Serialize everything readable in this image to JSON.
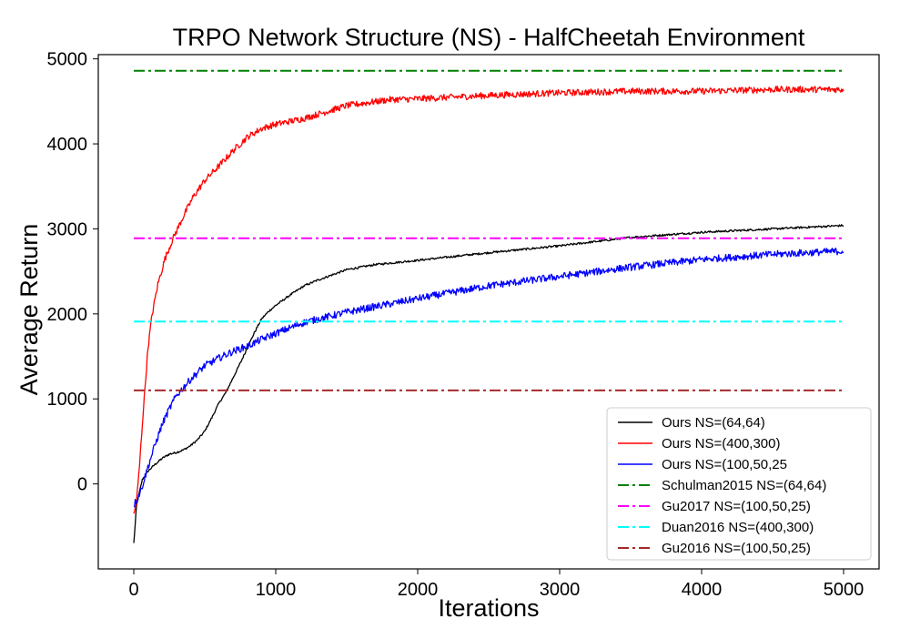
{
  "chart_data": {
    "type": "line",
    "title": "TRPO Network Structure (NS) - HalfCheetah Environment",
    "xlabel": "Iterations",
    "ylabel": "Average Return",
    "xlim": [
      -250,
      5250
    ],
    "ylim": [
      -1000,
      5050
    ],
    "xticks": [
      "0",
      "1000",
      "2000",
      "3000",
      "4000",
      "5000"
    ],
    "yticks": [
      "0",
      "1000",
      "2000",
      "3000",
      "4000",
      "5000"
    ],
    "grid": false,
    "legend_position": "lower-right",
    "series": [
      {
        "name": "Ours NS=(64,64)",
        "color": "#000000",
        "style": "solid",
        "noise": 12,
        "points": [
          [
            0,
            -700
          ],
          [
            20,
            -250
          ],
          [
            60,
            50
          ],
          [
            100,
            150
          ],
          [
            150,
            230
          ],
          [
            200,
            300
          ],
          [
            250,
            350
          ],
          [
            300,
            370
          ],
          [
            350,
            400
          ],
          [
            400,
            450
          ],
          [
            450,
            520
          ],
          [
            500,
            620
          ],
          [
            550,
            780
          ],
          [
            600,
            950
          ],
          [
            650,
            1080
          ],
          [
            700,
            1250
          ],
          [
            750,
            1420
          ],
          [
            800,
            1600
          ],
          [
            850,
            1780
          ],
          [
            900,
            1940
          ],
          [
            950,
            2030
          ],
          [
            1000,
            2100
          ],
          [
            1100,
            2220
          ],
          [
            1200,
            2330
          ],
          [
            1300,
            2400
          ],
          [
            1400,
            2460
          ],
          [
            1500,
            2520
          ],
          [
            1700,
            2580
          ],
          [
            2000,
            2630
          ],
          [
            2500,
            2720
          ],
          [
            3000,
            2800
          ],
          [
            3500,
            2900
          ],
          [
            4000,
            2960
          ],
          [
            4500,
            3000
          ],
          [
            5000,
            3040
          ]
        ]
      },
      {
        "name": "Ours NS=(400,300)",
        "color": "#ff0000",
        "style": "solid",
        "noise": 38,
        "points": [
          [
            0,
            -370
          ],
          [
            20,
            -200
          ],
          [
            40,
            200
          ],
          [
            60,
            700
          ],
          [
            80,
            1150
          ],
          [
            100,
            1600
          ],
          [
            130,
            2000
          ],
          [
            170,
            2350
          ],
          [
            220,
            2650
          ],
          [
            280,
            2900
          ],
          [
            350,
            3150
          ],
          [
            420,
            3380
          ],
          [
            500,
            3570
          ],
          [
            600,
            3740
          ],
          [
            700,
            3920
          ],
          [
            800,
            4080
          ],
          [
            900,
            4180
          ],
          [
            1000,
            4230
          ],
          [
            1200,
            4300
          ],
          [
            1400,
            4400
          ],
          [
            1500,
            4450
          ],
          [
            1800,
            4520
          ],
          [
            2000,
            4530
          ],
          [
            2500,
            4570
          ],
          [
            3000,
            4600
          ],
          [
            3500,
            4620
          ],
          [
            4000,
            4620
          ],
          [
            4500,
            4640
          ],
          [
            5000,
            4640
          ]
        ]
      },
      {
        "name": "Ours NS=(100,50,25",
        "color": "#0000ff",
        "style": "solid",
        "noise": 42,
        "points": [
          [
            0,
            -250
          ],
          [
            50,
            -80
          ],
          [
            100,
            200
          ],
          [
            150,
            460
          ],
          [
            200,
            700
          ],
          [
            250,
            880
          ],
          [
            300,
            1040
          ],
          [
            400,
            1230
          ],
          [
            500,
            1390
          ],
          [
            600,
            1480
          ],
          [
            700,
            1560
          ],
          [
            800,
            1620
          ],
          [
            900,
            1700
          ],
          [
            1000,
            1770
          ],
          [
            1200,
            1900
          ],
          [
            1500,
            2020
          ],
          [
            2000,
            2180
          ],
          [
            2500,
            2330
          ],
          [
            3000,
            2440
          ],
          [
            3500,
            2550
          ],
          [
            4000,
            2640
          ],
          [
            4500,
            2700
          ],
          [
            5000,
            2740
          ]
        ]
      },
      {
        "name": "Schulman2015 NS=(64,64)",
        "color": "#008000",
        "style": "dashdot",
        "points": [
          [
            0,
            4860
          ],
          [
            5000,
            4860
          ]
        ]
      },
      {
        "name": "Gu2017 NS=(100,50,25)",
        "color": "#ff00ff",
        "style": "dashdot",
        "points": [
          [
            0,
            2890
          ],
          [
            5000,
            2890
          ]
        ]
      },
      {
        "name": "Duan2016 NS=(400,300)",
        "color": "#00ffff",
        "style": "dashdot",
        "points": [
          [
            0,
            1910
          ],
          [
            5000,
            1910
          ]
        ]
      },
      {
        "name": "Gu2016 NS=(100,50,25)",
        "color": "#a52a2a",
        "style": "dashdot",
        "points": [
          [
            0,
            1100
          ],
          [
            5000,
            1100
          ]
        ]
      }
    ]
  }
}
